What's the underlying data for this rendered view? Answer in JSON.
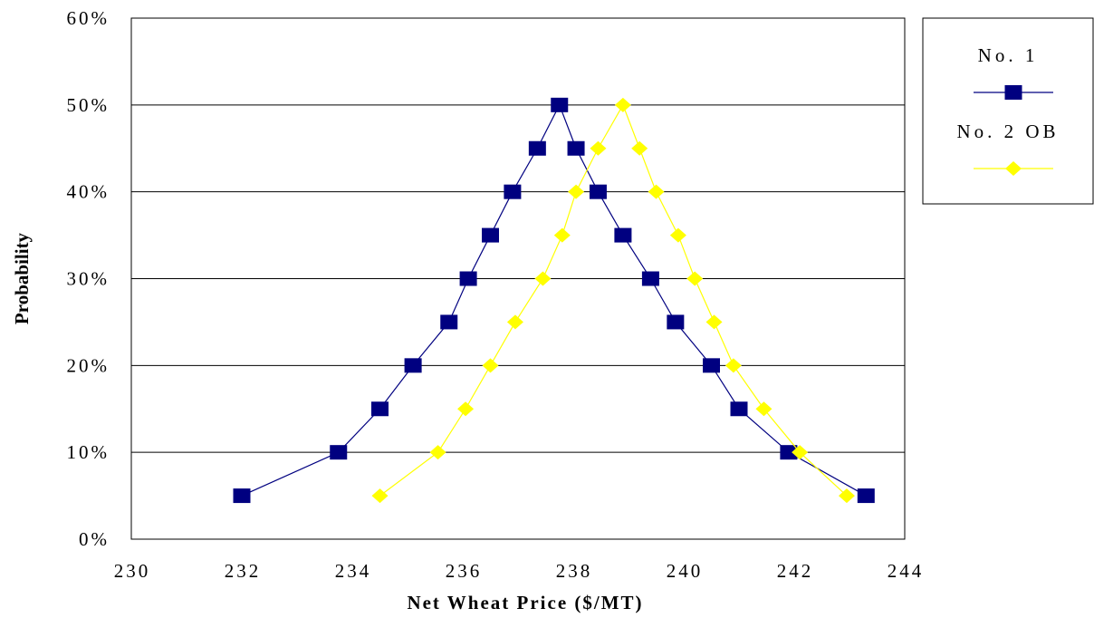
{
  "chart_data": {
    "type": "line",
    "xlabel": "Net Wheat Price ($/MT)",
    "ylabel": "Probability",
    "xlim": [
      230,
      244
    ],
    "ylim": [
      0,
      60
    ],
    "x_ticks": [
      "230",
      "232",
      "234",
      "236",
      "238",
      "240",
      "242",
      "244"
    ],
    "y_ticks": [
      "0%",
      "10%",
      "20%",
      "30%",
      "40%",
      "50%",
      "60%"
    ],
    "grid": "horizontal",
    "legend": "right",
    "series": [
      {
        "name": "No. 1",
        "color": "#000080",
        "marker": "square",
        "points": [
          [
            232.0,
            5
          ],
          [
            233.75,
            10
          ],
          [
            234.5,
            15
          ],
          [
            235.1,
            20
          ],
          [
            235.75,
            25
          ],
          [
            236.1,
            30
          ],
          [
            236.5,
            35
          ],
          [
            236.9,
            40
          ],
          [
            237.35,
            45
          ],
          [
            237.75,
            50
          ],
          [
            238.05,
            45
          ],
          [
            238.45,
            40
          ],
          [
            238.9,
            35
          ],
          [
            239.4,
            30
          ],
          [
            239.85,
            25
          ],
          [
            240.5,
            20
          ],
          [
            241.0,
            15
          ],
          [
            241.9,
            10
          ],
          [
            243.3,
            5
          ]
        ]
      },
      {
        "name": "No. 2 OB",
        "color": "#FFFF00",
        "marker": "diamond",
        "points": [
          [
            234.5,
            5
          ],
          [
            235.55,
            10
          ],
          [
            236.05,
            15
          ],
          [
            236.5,
            20
          ],
          [
            236.95,
            25
          ],
          [
            237.45,
            30
          ],
          [
            237.8,
            35
          ],
          [
            238.05,
            40
          ],
          [
            238.45,
            45
          ],
          [
            238.9,
            50
          ],
          [
            239.2,
            45
          ],
          [
            239.5,
            40
          ],
          [
            239.9,
            35
          ],
          [
            240.2,
            30
          ],
          [
            240.55,
            25
          ],
          [
            240.9,
            20
          ],
          [
            241.45,
            15
          ],
          [
            242.1,
            10
          ],
          [
            242.95,
            5
          ]
        ]
      }
    ]
  }
}
